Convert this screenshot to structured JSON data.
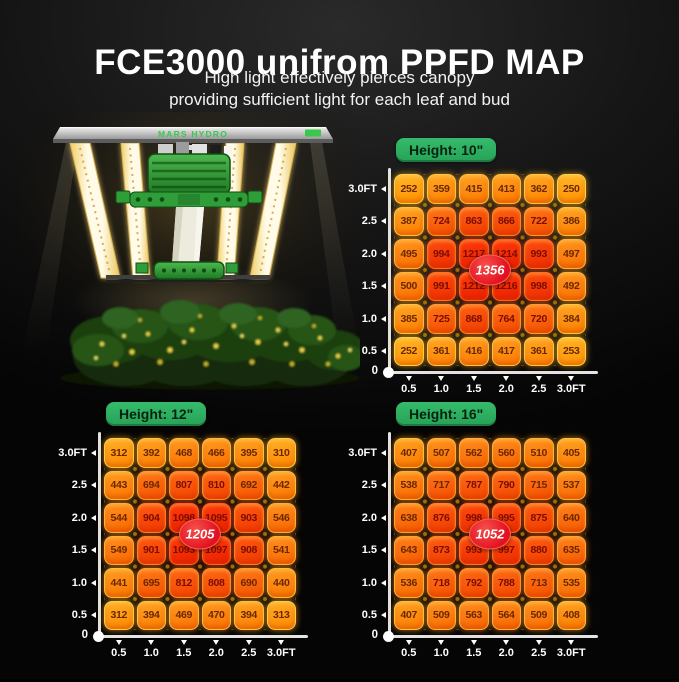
{
  "title": "FCE3000 unifrom PPFD MAP",
  "subtitle": {
    "line1": "High light effectively pierces canopy",
    "line2": "providing sufficient light for each leaf and bud"
  },
  "lamp": {
    "brand": "MARS HYDRO"
  },
  "colors": {
    "badge_green": "#2fb061",
    "badge_green_text": "#06230f",
    "peak_badge_red": "#e3101f",
    "axis": "#e3e3e3",
    "cell_low_orange": "#ffb02e",
    "cell_high_red": "#ee3a06",
    "background": "#121212"
  },
  "chart_data": [
    {
      "type": "heatmap",
      "title": "Height: 10\"",
      "peak_value": "1356",
      "x_unit": "FT",
      "y_unit": "FT",
      "x_tick_labels": [
        "0.5",
        "1.0",
        "1.5",
        "2.0",
        "2.5",
        "3.0FT"
      ],
      "y_tick_labels": [
        "3.0FT",
        "2.5",
        "2.0",
        "1.5",
        "1.0",
        "0.5"
      ],
      "origin_label": "0",
      "rows": [
        [
          252,
          359,
          415,
          413,
          362,
          250
        ],
        [
          387,
          724,
          863,
          866,
          722,
          386
        ],
        [
          495,
          994,
          1217,
          1214,
          993,
          497
        ],
        [
          500,
          991,
          1212,
          1216,
          998,
          492
        ],
        [
          385,
          725,
          868,
          764,
          720,
          384
        ],
        [
          252,
          361,
          416,
          417,
          361,
          253
        ]
      ]
    },
    {
      "type": "heatmap",
      "title": "Height: 12\"",
      "peak_value": "1205",
      "x_unit": "FT",
      "y_unit": "FT",
      "x_tick_labels": [
        "0.5",
        "1.0",
        "1.5",
        "2.0",
        "2.5",
        "3.0FT"
      ],
      "y_tick_labels": [
        "3.0FT",
        "2.5",
        "2.0",
        "1.5",
        "1.0",
        "0.5"
      ],
      "origin_label": "0",
      "rows": [
        [
          312,
          392,
          468,
          466,
          395,
          310
        ],
        [
          443,
          694,
          807,
          810,
          692,
          442
        ],
        [
          544,
          904,
          1098,
          1095,
          903,
          546
        ],
        [
          549,
          901,
          1093,
          1097,
          908,
          541
        ],
        [
          441,
          695,
          812,
          808,
          690,
          440
        ],
        [
          312,
          394,
          469,
          470,
          394,
          313
        ]
      ]
    },
    {
      "type": "heatmap",
      "title": "Height: 16\"",
      "peak_value": "1052",
      "x_unit": "FT",
      "y_unit": "FT",
      "x_tick_labels": [
        "0.5",
        "1.0",
        "1.5",
        "2.0",
        "2.5",
        "3.0FT"
      ],
      "y_tick_labels": [
        "3.0FT",
        "2.5",
        "2.0",
        "1.5",
        "1.0",
        "0.5"
      ],
      "origin_label": "0",
      "rows": [
        [
          407,
          507,
          562,
          560,
          510,
          405
        ],
        [
          538,
          717,
          787,
          790,
          715,
          537
        ],
        [
          638,
          876,
          998,
          995,
          875,
          640
        ],
        [
          643,
          873,
          993,
          997,
          880,
          635
        ],
        [
          536,
          718,
          792,
          788,
          713,
          535
        ],
        [
          407,
          509,
          563,
          564,
          509,
          408
        ]
      ]
    }
  ]
}
